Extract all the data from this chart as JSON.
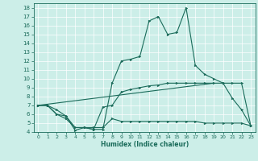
{
  "title": "",
  "xlabel": "Humidex (Indice chaleur)",
  "bg_color": "#cceee8",
  "line_color": "#1a6b5a",
  "grid_color": "#ffffff",
  "xlim": [
    -0.5,
    23.5
  ],
  "ylim": [
    4,
    18.5
  ],
  "xticks": [
    0,
    1,
    2,
    3,
    4,
    5,
    6,
    7,
    8,
    9,
    10,
    11,
    12,
    13,
    14,
    15,
    16,
    17,
    18,
    19,
    20,
    21,
    22,
    23
  ],
  "yticks": [
    4,
    5,
    6,
    7,
    8,
    9,
    10,
    11,
    12,
    13,
    14,
    15,
    16,
    17,
    18
  ],
  "line1_x": [
    0,
    1,
    2,
    3,
    4,
    5,
    6,
    7,
    8,
    9,
    10,
    11,
    12,
    13,
    14,
    15,
    16,
    17,
    18,
    19,
    20,
    21,
    22,
    23
  ],
  "line1_y": [
    7.0,
    7.0,
    6.5,
    5.8,
    4.2,
    4.5,
    4.3,
    4.3,
    9.5,
    12.0,
    12.2,
    12.5,
    16.5,
    17.0,
    15.0,
    15.2,
    18.0,
    11.5,
    10.5,
    10.0,
    9.5,
    7.8,
    6.5,
    4.7
  ],
  "line2_x": [
    0,
    1,
    2,
    3,
    4,
    5,
    6,
    7,
    8,
    9,
    10,
    11,
    12,
    13,
    14,
    15,
    16,
    17,
    18,
    19,
    20,
    21,
    22,
    23
  ],
  "line2_y": [
    7.0,
    7.0,
    6.0,
    5.8,
    4.5,
    4.5,
    4.3,
    6.8,
    7.0,
    8.5,
    8.8,
    9.0,
    9.2,
    9.3,
    9.5,
    9.5,
    9.5,
    9.5,
    9.5,
    9.5,
    9.5,
    9.5,
    9.5,
    4.7
  ],
  "line3_x": [
    0,
    19
  ],
  "line3_y": [
    7.0,
    9.5
  ],
  "line4_x": [
    0,
    1,
    2,
    3,
    4,
    5,
    6,
    7,
    8,
    9,
    10,
    11,
    12,
    13,
    14,
    15,
    16,
    17,
    18,
    19,
    20,
    21,
    22,
    23
  ],
  "line4_y": [
    7.0,
    7.0,
    6.0,
    5.5,
    4.5,
    4.5,
    4.5,
    4.5,
    5.5,
    5.2,
    5.2,
    5.2,
    5.2,
    5.2,
    5.2,
    5.2,
    5.2,
    5.2,
    5.0,
    5.0,
    5.0,
    5.0,
    5.0,
    4.7
  ]
}
